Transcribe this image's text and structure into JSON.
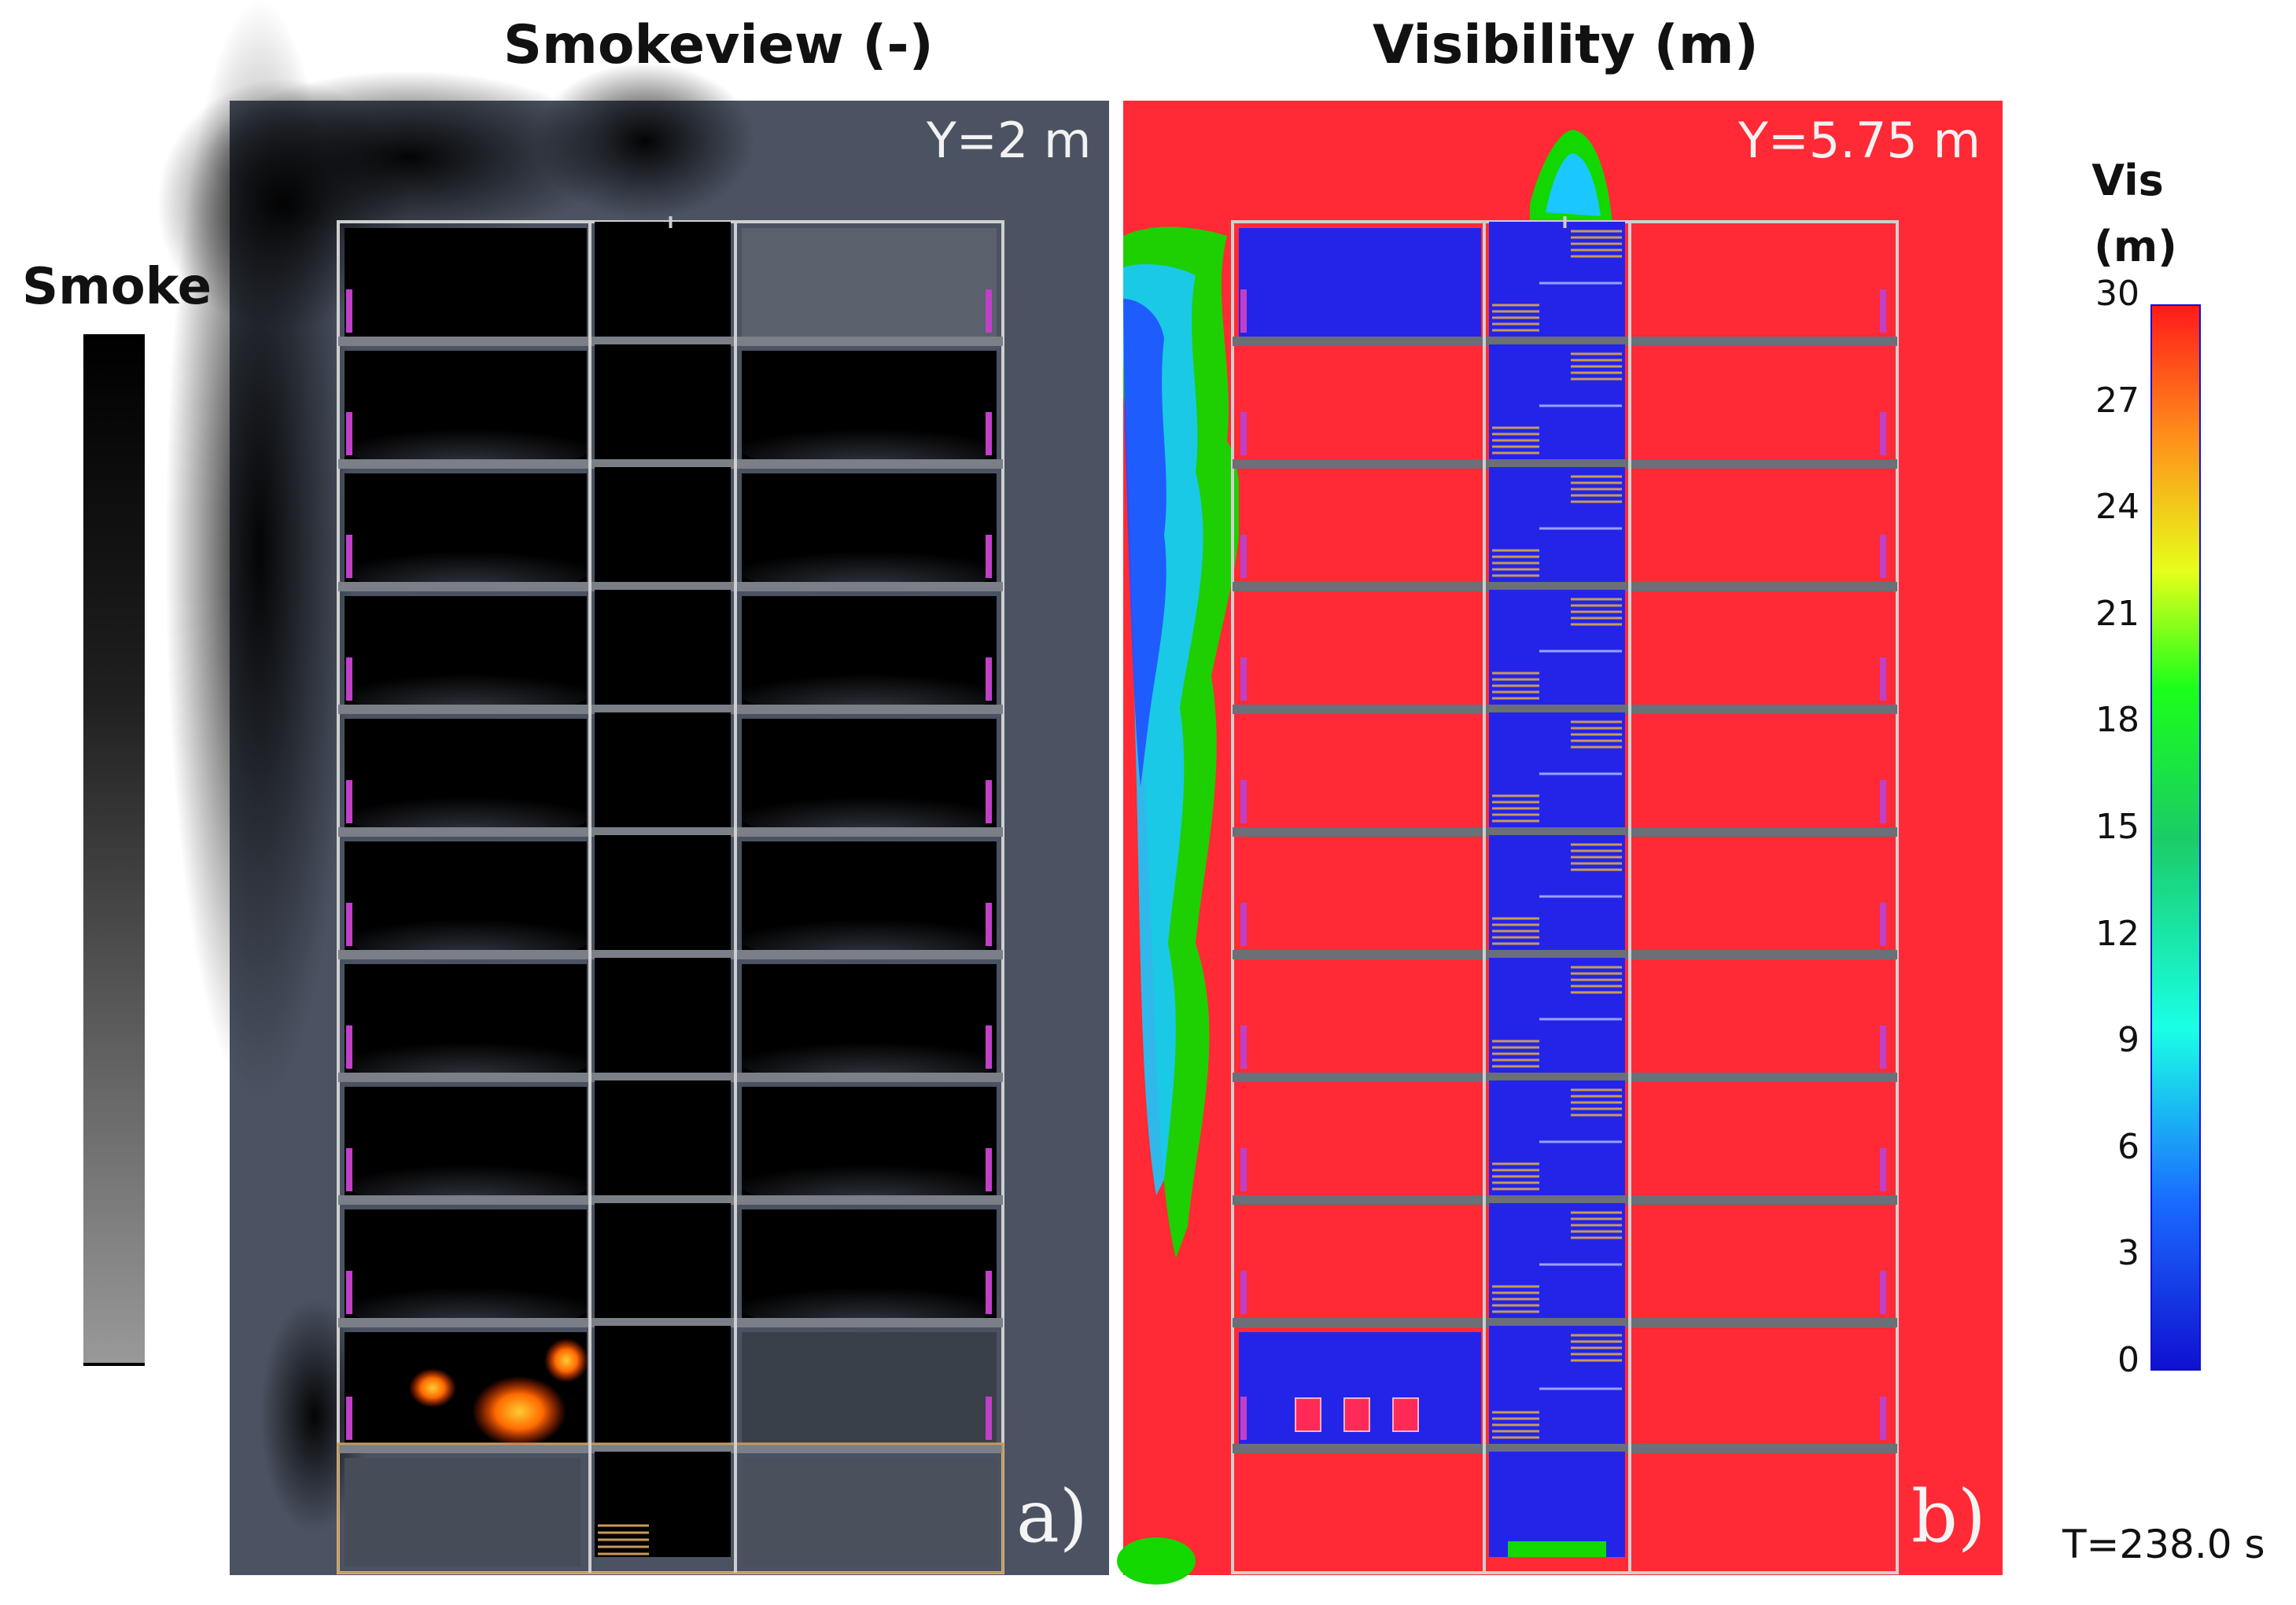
{
  "panel_a": {
    "title": "Smokeview (-)",
    "slice_label": "Y=2 m",
    "letter": "a)"
  },
  "panel_b": {
    "title": "Visibility (m)",
    "slice_label": "Y=5.75 m",
    "letter": "b)"
  },
  "smoke_legend": {
    "title": "Smoke"
  },
  "vis_legend": {
    "title_line1": "Vis",
    "title_line2": "(m)",
    "ticks": [
      "30",
      "27",
      "24",
      "21",
      "18",
      "15",
      "12",
      "9",
      "6",
      "3",
      "0"
    ]
  },
  "time_label": "T=238.0 s",
  "colors": {
    "vis_high": "#ff2a35",
    "vis_low": "#2020e8",
    "smoke_bg": "#4a5260",
    "frame": "#cfcfcf"
  }
}
